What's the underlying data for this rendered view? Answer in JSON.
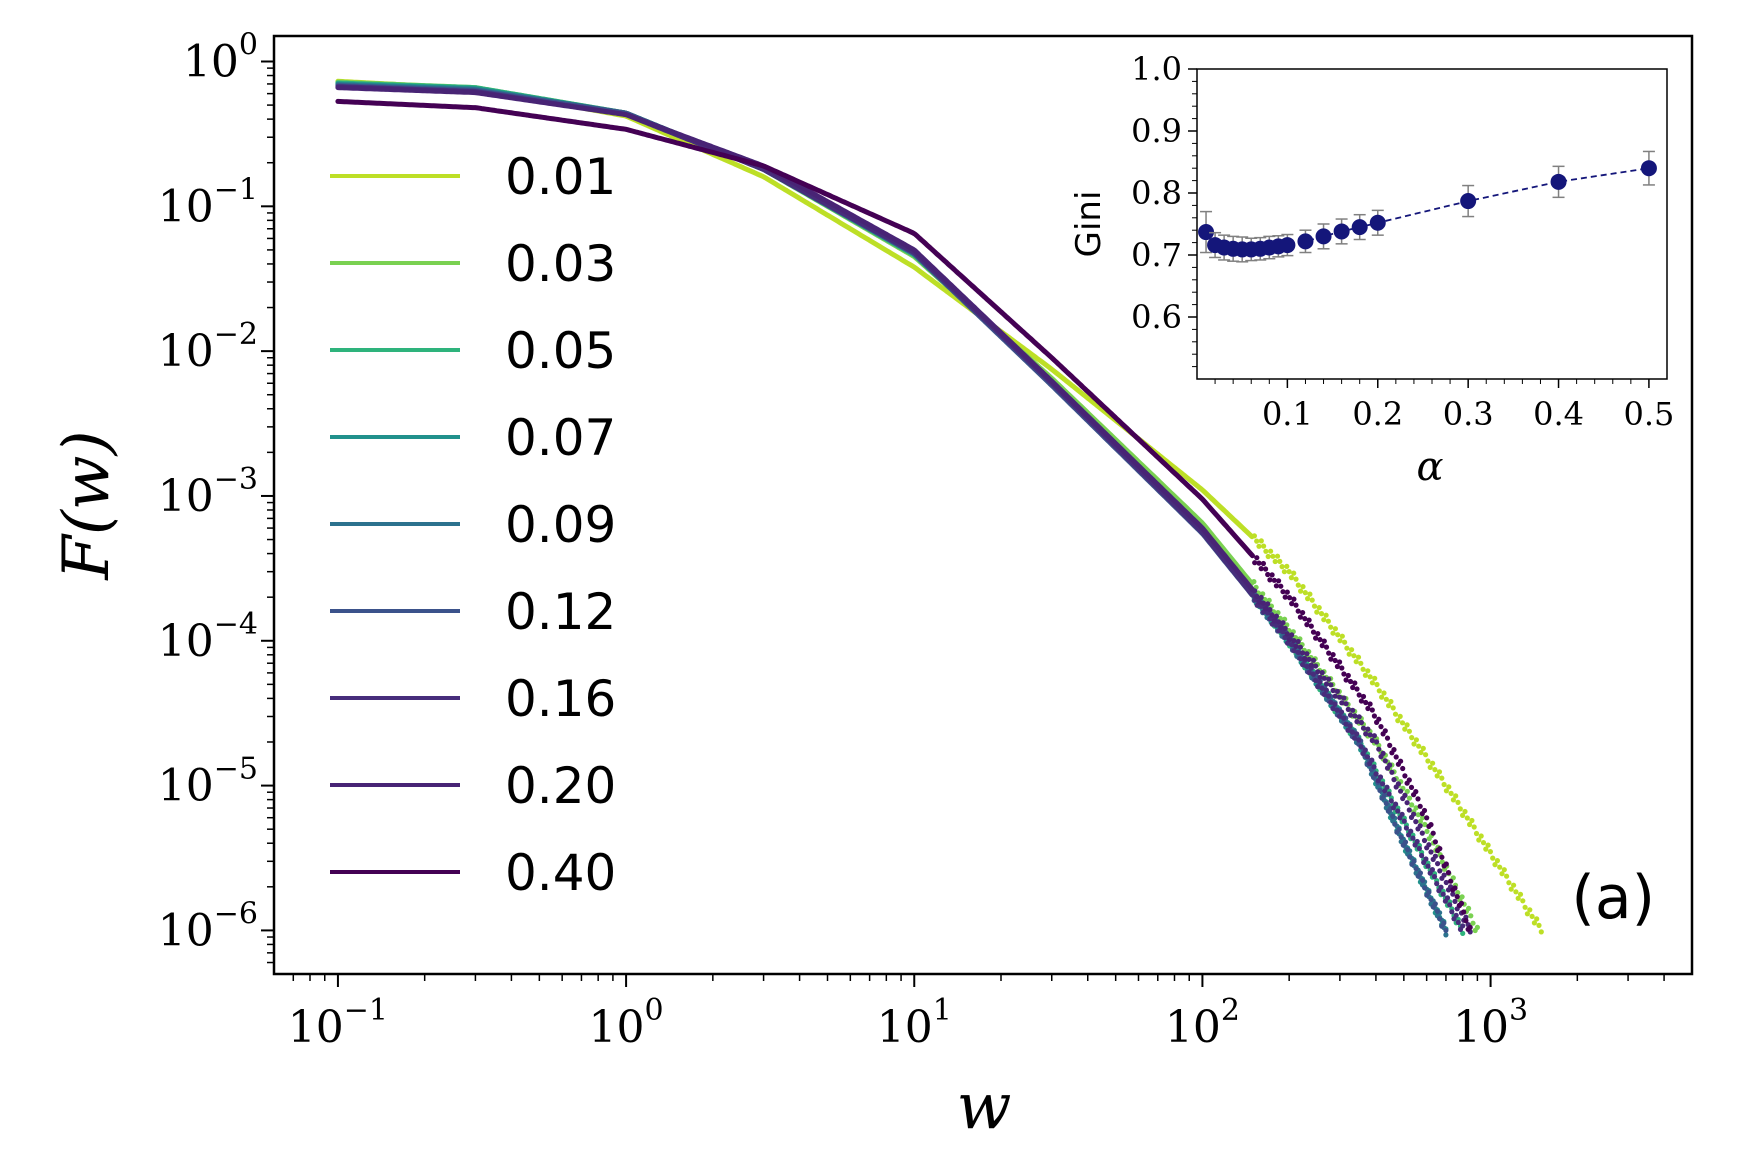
{
  "chart_data": [
    {
      "type": "line",
      "xlabel": "w",
      "ylabel": "F(w)",
      "xscale": "log",
      "yscale": "log",
      "xlim": [
        0.06,
        5000
      ],
      "ylim": [
        5e-07,
        1.5
      ],
      "panel_label": "(a)",
      "legend_position": "left",
      "x_tick_labels": [
        {
          "base": "10",
          "exp": "−1",
          "value": 0.1
        },
        {
          "base": "10",
          "exp": "0",
          "value": 1
        },
        {
          "base": "10",
          "exp": "1",
          "value": 10
        },
        {
          "base": "10",
          "exp": "2",
          "value": 100
        },
        {
          "base": "10",
          "exp": "3",
          "value": 1000
        }
      ],
      "y_tick_labels": [
        {
          "base": "10",
          "exp": "0",
          "value": 1
        },
        {
          "base": "10",
          "exp": "−1",
          "value": 0.1
        },
        {
          "base": "10",
          "exp": "−2",
          "value": 0.01
        },
        {
          "base": "10",
          "exp": "−3",
          "value": 0.001
        },
        {
          "base": "10",
          "exp": "−4",
          "value": 0.0001
        },
        {
          "base": "10",
          "exp": "−5",
          "value": 1e-05
        },
        {
          "base": "10",
          "exp": "−6",
          "value": 1e-06
        }
      ],
      "series": [
        {
          "name": "0.01",
          "color": "#bddf26",
          "points": [
            [
              0.1,
              0.73
            ],
            [
              0.3,
              0.65
            ],
            [
              1,
              0.42
            ],
            [
              3,
              0.16
            ],
            [
              10,
              0.038
            ],
            [
              30,
              0.0075
            ],
            [
              100,
              0.0011
            ],
            [
              200,
              0.0003
            ],
            [
              400,
              5e-05
            ],
            [
              700,
              1e-05
            ],
            [
              1500,
              1e-06
            ]
          ]
        },
        {
          "name": "0.03",
          "color": "#7ad151",
          "points": [
            [
              0.1,
              0.72
            ],
            [
              0.3,
              0.66
            ],
            [
              1,
              0.44
            ],
            [
              3,
              0.18
            ],
            [
              10,
              0.045
            ],
            [
              30,
              0.0065
            ],
            [
              100,
              0.00065
            ],
            [
              200,
              0.00012
            ],
            [
              400,
              2e-05
            ],
            [
              600,
              5e-06
            ],
            [
              900,
              1e-06
            ]
          ]
        },
        {
          "name": "0.05",
          "color": "#2eb37c",
          "points": [
            [
              0.1,
              0.71
            ],
            [
              0.3,
              0.66
            ],
            [
              1,
              0.44
            ],
            [
              3,
              0.18
            ],
            [
              10,
              0.046
            ],
            [
              30,
              0.0062
            ],
            [
              100,
              0.0006
            ],
            [
              200,
              0.0001
            ],
            [
              350,
              2e-05
            ],
            [
              550,
              4e-06
            ],
            [
              800,
              1e-06
            ]
          ]
        },
        {
          "name": "0.07",
          "color": "#21918c",
          "points": [
            [
              0.1,
              0.7
            ],
            [
              0.3,
              0.65
            ],
            [
              1,
              0.44
            ],
            [
              3,
              0.18
            ],
            [
              10,
              0.047
            ],
            [
              30,
              0.006
            ],
            [
              100,
              0.00058
            ],
            [
              200,
              0.0001
            ],
            [
              350,
              2e-05
            ],
            [
              500,
              4e-06
            ],
            [
              700,
              1e-06
            ]
          ]
        },
        {
          "name": "0.09",
          "color": "#2c728e",
          "points": [
            [
              0.1,
              0.69
            ],
            [
              0.3,
              0.64
            ],
            [
              1,
              0.44
            ],
            [
              3,
              0.18
            ],
            [
              10,
              0.047
            ],
            [
              30,
              0.006
            ],
            [
              100,
              0.00056
            ],
            [
              200,
              0.0001
            ],
            [
              350,
              2e-05
            ],
            [
              500,
              4e-06
            ],
            [
              700,
              1e-06
            ]
          ]
        },
        {
          "name": "0.12",
          "color": "#3b528b",
          "points": [
            [
              0.1,
              0.68
            ],
            [
              0.3,
              0.63
            ],
            [
              1,
              0.44
            ],
            [
              3,
              0.18
            ],
            [
              10,
              0.047
            ],
            [
              30,
              0.0058
            ],
            [
              100,
              0.00055
            ],
            [
              200,
              0.0001
            ],
            [
              350,
              2e-05
            ],
            [
              500,
              4e-06
            ],
            [
              700,
              1e-06
            ]
          ]
        },
        {
          "name": "0.16",
          "color": "#472d7b",
          "points": [
            [
              0.1,
              0.67
            ],
            [
              0.3,
              0.62
            ],
            [
              1,
              0.43
            ],
            [
              3,
              0.18
            ],
            [
              10,
              0.048
            ],
            [
              30,
              0.006
            ],
            [
              100,
              0.00056
            ],
            [
              200,
              0.0001
            ],
            [
              350,
              2e-05
            ],
            [
              550,
              4e-06
            ],
            [
              800,
              1e-06
            ]
          ]
        },
        {
          "name": "0.20",
          "color": "#482475",
          "points": [
            [
              0.1,
              0.66
            ],
            [
              0.3,
              0.61
            ],
            [
              1,
              0.43
            ],
            [
              3,
              0.19
            ],
            [
              10,
              0.05
            ],
            [
              30,
              0.0062
            ],
            [
              100,
              0.0006
            ],
            [
              200,
              0.00011
            ],
            [
              400,
              2e-05
            ],
            [
              600,
              4e-06
            ],
            [
              850,
              1e-06
            ]
          ]
        },
        {
          "name": "0.40",
          "color": "#440154",
          "points": [
            [
              0.1,
              0.53
            ],
            [
              0.3,
              0.48
            ],
            [
              1,
              0.34
            ],
            [
              3,
              0.19
            ],
            [
              10,
              0.065
            ],
            [
              30,
              0.009
            ],
            [
              100,
              0.00095
            ],
            [
              200,
              0.0002
            ],
            [
              400,
              3e-05
            ],
            [
              600,
              6e-06
            ],
            [
              850,
              1e-06
            ]
          ]
        }
      ]
    },
    {
      "type": "line",
      "xlabel": "α",
      "ylabel": "Gini",
      "xlim": [
        0,
        0.52
      ],
      "ylim": [
        0.5,
        1.0
      ],
      "x_ticks": [
        "0.1",
        "0.2",
        "0.3",
        "0.4",
        "0.5"
      ],
      "y_ticks": [
        "0.6",
        "0.7",
        "0.8",
        "0.9",
        "1.0"
      ],
      "marker_color": "#14167a",
      "points": [
        {
          "x": 0.01,
          "y": 0.737,
          "err": 0.033
        },
        {
          "x": 0.02,
          "y": 0.716,
          "err": 0.02
        },
        {
          "x": 0.03,
          "y": 0.712,
          "err": 0.02
        },
        {
          "x": 0.04,
          "y": 0.71,
          "err": 0.02
        },
        {
          "x": 0.05,
          "y": 0.709,
          "err": 0.02
        },
        {
          "x": 0.06,
          "y": 0.709,
          "err": 0.018
        },
        {
          "x": 0.07,
          "y": 0.71,
          "err": 0.018
        },
        {
          "x": 0.08,
          "y": 0.712,
          "err": 0.018
        },
        {
          "x": 0.09,
          "y": 0.714,
          "err": 0.017
        },
        {
          "x": 0.1,
          "y": 0.716,
          "err": 0.017
        },
        {
          "x": 0.12,
          "y": 0.722,
          "err": 0.018
        },
        {
          "x": 0.14,
          "y": 0.73,
          "err": 0.02
        },
        {
          "x": 0.16,
          "y": 0.738,
          "err": 0.02
        },
        {
          "x": 0.18,
          "y": 0.745,
          "err": 0.02
        },
        {
          "x": 0.2,
          "y": 0.752,
          "err": 0.02
        },
        {
          "x": 0.3,
          "y": 0.787,
          "err": 0.025
        },
        {
          "x": 0.4,
          "y": 0.818,
          "err": 0.025
        },
        {
          "x": 0.5,
          "y": 0.84,
          "err": 0.027
        }
      ]
    }
  ]
}
